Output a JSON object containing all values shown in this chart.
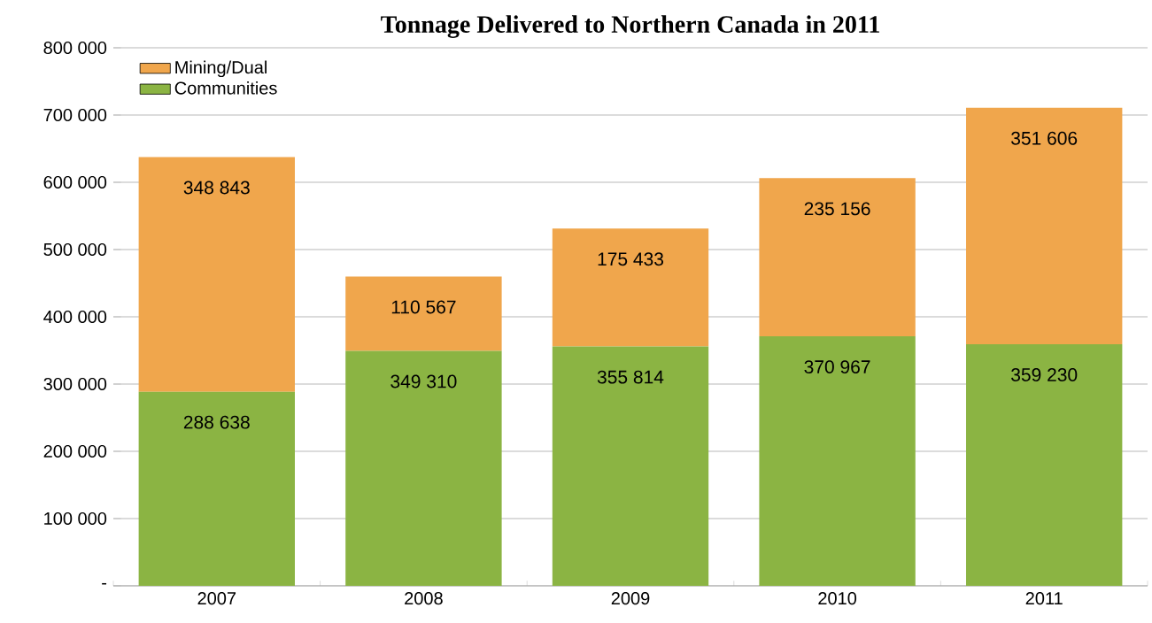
{
  "chart_data": {
    "type": "bar",
    "title": "Tonnage Delivered to Northern Canada in 2011",
    "categories": [
      "2007",
      "2008",
      "2009",
      "2010",
      "2011"
    ],
    "stacked": true,
    "series": [
      {
        "name": "Communities",
        "color": "#8bb443",
        "values": [
          288638,
          349310,
          355814,
          370967,
          359230
        ],
        "value_labels": [
          "288 638",
          "349 310",
          "355 814",
          "370 967",
          "359 230"
        ]
      },
      {
        "name": "Mining/Dual",
        "color": "#f0a64c",
        "values": [
          348843,
          110567,
          175433,
          235156,
          351606
        ],
        "value_labels": [
          "348 843",
          "110 567",
          "175 433",
          "235 156",
          "351 606"
        ]
      }
    ],
    "ylim": [
      0,
      800000
    ],
    "yticks": [
      {
        "value": 0,
        "label": "-"
      },
      {
        "value": 100000,
        "label": "100 000"
      },
      {
        "value": 200000,
        "label": "200 000"
      },
      {
        "value": 300000,
        "label": "300 000"
      },
      {
        "value": 400000,
        "label": "400 000"
      },
      {
        "value": 500000,
        "label": "500 000"
      },
      {
        "value": 600000,
        "label": "600 000"
      },
      {
        "value": 700000,
        "label": "700 000"
      },
      {
        "value": 800000,
        "label": "800 000"
      }
    ],
    "grid": "y",
    "legend": "top left"
  }
}
